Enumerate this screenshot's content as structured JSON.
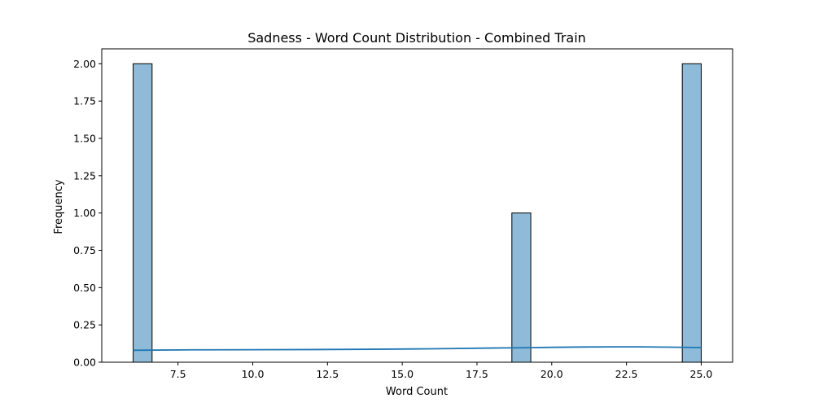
{
  "chart_data": {
    "type": "bar",
    "title": "Sadness - Word Count Distribution - Combined Train",
    "xlabel": "Word Count",
    "ylabel": "Frequency",
    "xlim": [
      4.95,
      26.05
    ],
    "ylim": [
      0,
      2.1
    ],
    "x_ticks": [
      "7.5",
      "10.0",
      "12.5",
      "15.0",
      "17.5",
      "20.0",
      "22.5",
      "25.0"
    ],
    "y_ticks": [
      "0.00",
      "0.25",
      "0.50",
      "0.75",
      "1.00",
      "1.25",
      "1.50",
      "1.75",
      "2.00"
    ],
    "bins": [
      {
        "x0": 6.0,
        "x1": 6.6333,
        "count": 2
      },
      {
        "x0": 18.6667,
        "x1": 19.3,
        "count": 1
      },
      {
        "x0": 24.3667,
        "x1": 25.0,
        "count": 2
      }
    ],
    "kde": {
      "x": [
        6,
        8,
        10,
        12,
        14,
        16,
        18,
        19,
        20,
        21,
        22,
        23,
        24,
        25
      ],
      "y": [
        0.08,
        0.083,
        0.084,
        0.085,
        0.087,
        0.09,
        0.095,
        0.097,
        0.1,
        0.102,
        0.103,
        0.103,
        0.101,
        0.098
      ]
    },
    "bar_color": "#8fbbd9",
    "line_color": "#1f77b4",
    "grid": false
  }
}
